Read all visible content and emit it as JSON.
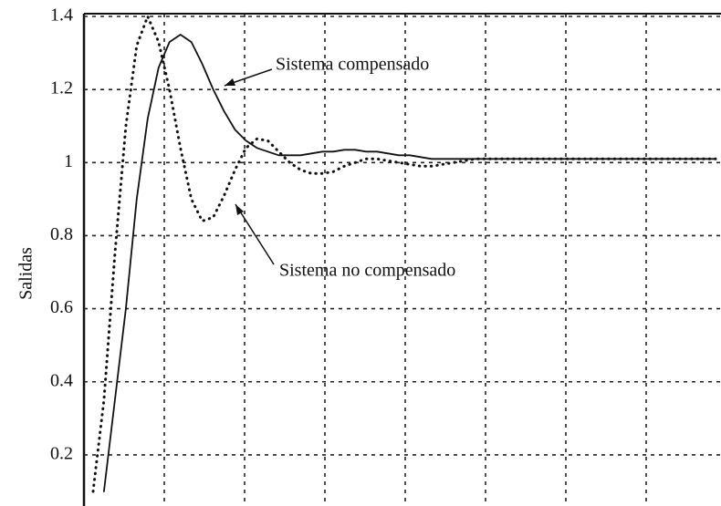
{
  "chart_data": {
    "type": "line",
    "ylabel": "Salidas",
    "categories": [
      null,
      null,
      null,
      null,
      null,
      null,
      null,
      null,
      null,
      null,
      null,
      null,
      null,
      null,
      null,
      null,
      null,
      null,
      null,
      null,
      null,
      null,
      null,
      null,
      null,
      null,
      null,
      null,
      null,
      null,
      null,
      null,
      null,
      null,
      null,
      null,
      null,
      null,
      null,
      null,
      null,
      null,
      null,
      null,
      null,
      null,
      null,
      null,
      null,
      null,
      null,
      null,
      null,
      null,
      null,
      null,
      null,
      null
    ],
    "series": [
      {
        "name": "Sistema compensado",
        "color": "#111111",
        "style": "solid",
        "values": [
          null,
          0.1,
          0.35,
          0.6,
          0.9,
          1.12,
          1.26,
          1.33,
          1.35,
          1.33,
          1.27,
          1.2,
          1.14,
          1.09,
          1.06,
          1.04,
          1.03,
          1.02,
          1.02,
          1.02,
          1.025,
          1.03,
          1.03,
          1.035,
          1.035,
          1.03,
          1.03,
          1.025,
          1.02,
          1.02,
          1.015,
          1.01,
          1.01,
          1.01,
          1.01,
          1.01,
          1.01,
          1.01,
          1.01,
          1.01,
          1.01,
          1.01,
          1.01,
          1.01,
          1.01,
          1.01,
          1.01,
          1.01,
          1.01,
          1.01,
          1.01,
          1.01,
          1.01,
          1.01,
          1.01,
          1.01,
          1.01,
          1.01
        ]
      },
      {
        "name": "Sistema no compensado",
        "color": "#111111",
        "style": "dotted",
        "values": [
          0.1,
          0.35,
          0.75,
          1.1,
          1.32,
          1.4,
          1.33,
          1.2,
          1.04,
          0.9,
          0.84,
          0.85,
          0.91,
          0.98,
          1.04,
          1.065,
          1.06,
          1.03,
          1.0,
          0.98,
          0.97,
          0.97,
          0.975,
          0.99,
          1.0,
          1.01,
          1.01,
          1.005,
          1.0,
          0.995,
          0.99,
          0.99,
          0.995,
          1.0,
          1.005,
          1.01,
          1.01,
          1.01,
          1.01,
          1.01,
          1.01,
          1.01,
          1.01,
          1.01,
          1.01,
          1.01,
          1.01,
          1.01,
          1.01,
          1.01,
          1.01,
          1.01,
          1.01,
          1.01,
          1.01,
          1.01,
          1.01,
          1.01
        ]
      }
    ],
    "ylim": [
      0.06,
      1.4
    ],
    "yticks": [
      {
        "value": 0.2,
        "label": "0.2"
      },
      {
        "value": 0.4,
        "label": "0.4"
      },
      {
        "value": 0.6,
        "label": "0.6"
      },
      {
        "value": 0.8,
        "label": "0.8"
      },
      1,
      {
        "value": 1.2,
        "label": "1.2"
      },
      {
        "value": 1.4,
        "label": "1.4"
      }
    ],
    "grid": true
  }
}
